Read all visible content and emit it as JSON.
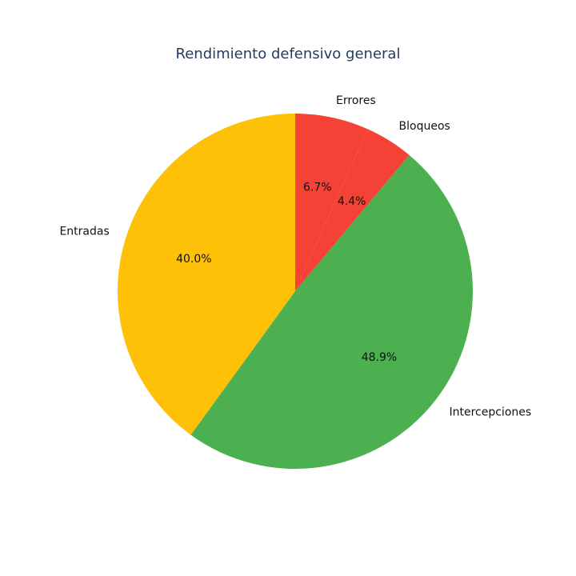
{
  "chart_data": {
    "type": "pie",
    "title": "Rendimiento defensivo general",
    "slices": [
      {
        "label": "Entradas",
        "value": 40.0,
        "display": "40.0%",
        "color": "#FFC107"
      },
      {
        "label": "Intercepciones",
        "value": 48.9,
        "display": "48.9%",
        "color": "#4CAF50"
      },
      {
        "label": "Bloqueos",
        "value": 4.4,
        "display": "4.4%",
        "color": "#F44336"
      },
      {
        "label": "Errores",
        "value": 6.7,
        "display": "6.7%",
        "color": "#F44336"
      }
    ],
    "start_angle_deg": 90,
    "direction": "counterclockwise",
    "legend": "none"
  }
}
